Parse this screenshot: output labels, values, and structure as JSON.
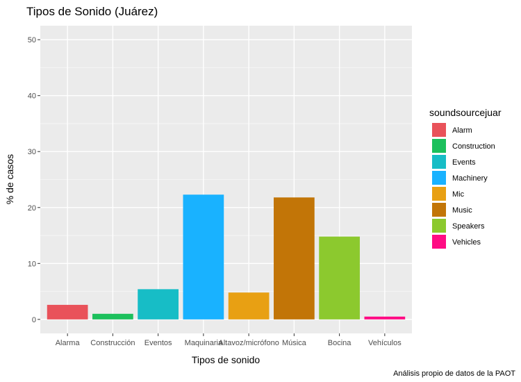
{
  "chart_data": {
    "type": "bar",
    "title": "Tipos de Sonido (Juárez)",
    "xlabel": "Tipos de sonido",
    "ylabel": "% de casos",
    "caption": "Análisis propio de datos de la PAOT",
    "categories": [
      "Alarma",
      "Construcción",
      "Eventos",
      "Maquinaria",
      "Altavoz/micrófono",
      "Música",
      "Bocina",
      "Vehículos"
    ],
    "values": [
      2.6,
      1.0,
      5.4,
      22.3,
      4.8,
      21.8,
      14.8,
      0.5
    ],
    "colors": [
      "#E9525A",
      "#1CC05C",
      "#17BDC6",
      "#19B2FF",
      "#E8A013",
      "#C27507",
      "#8CC92E",
      "#FF0C84"
    ],
    "ylim": [
      -2.5,
      52.5
    ],
    "yticks": [
      0,
      10,
      20,
      30,
      40,
      50
    ],
    "grid": true,
    "legend": {
      "title": "soundsourcejuar",
      "position": "right",
      "entries": [
        "Alarm",
        "Construction",
        "Events",
        "Machinery",
        "Mic",
        "Music",
        "Speakers",
        "Vehicles"
      ]
    }
  }
}
